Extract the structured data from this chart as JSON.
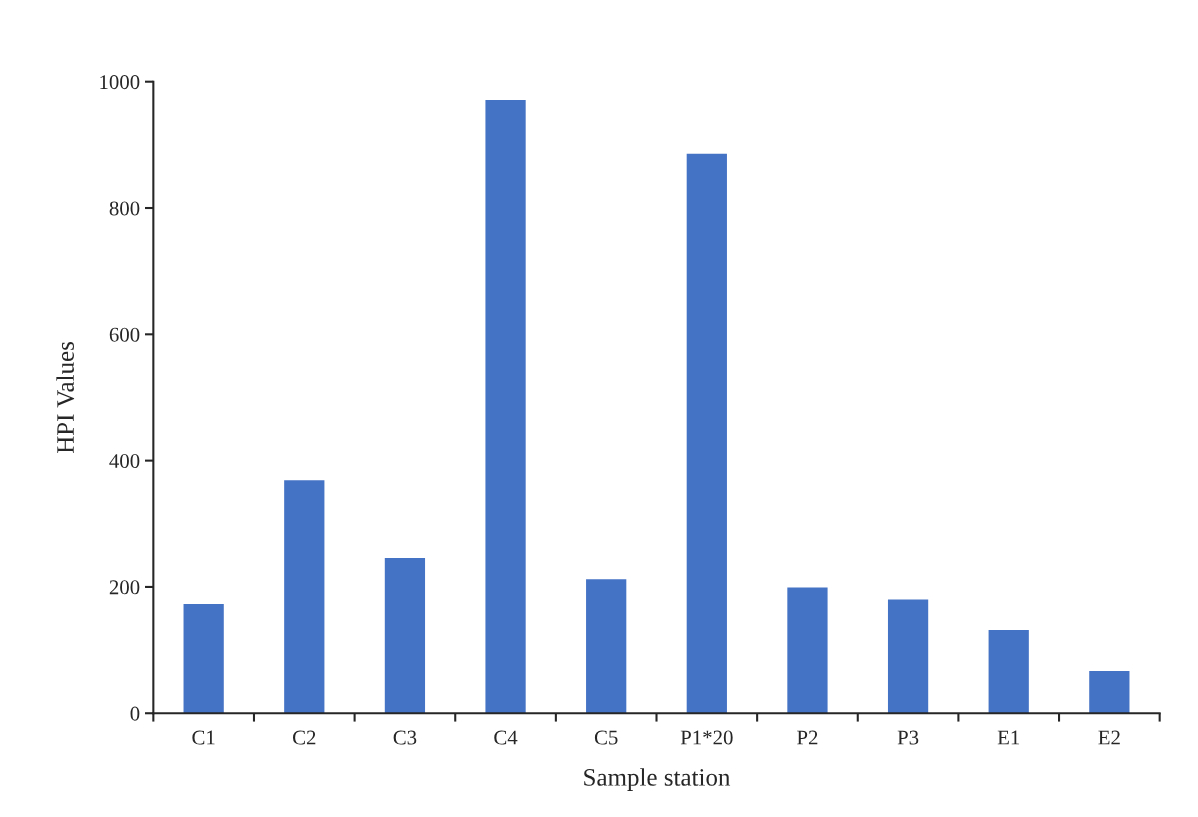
{
  "chart_data": {
    "type": "bar",
    "xlabel": "Sample station",
    "ylabel": "HPI Values",
    "categories": [
      "C1",
      "C2",
      "C3",
      "C4",
      "C5",
      "P1*20",
      "P2",
      "P3",
      "E1",
      "E2"
    ],
    "values": [
      173,
      369,
      246,
      971,
      212,
      886,
      199,
      180,
      132,
      67
    ],
    "color": "#4472c4",
    "ylim": [
      0,
      1000
    ],
    "yticks": [
      0,
      200,
      400,
      600,
      800,
      1000
    ],
    "grid": false
  }
}
